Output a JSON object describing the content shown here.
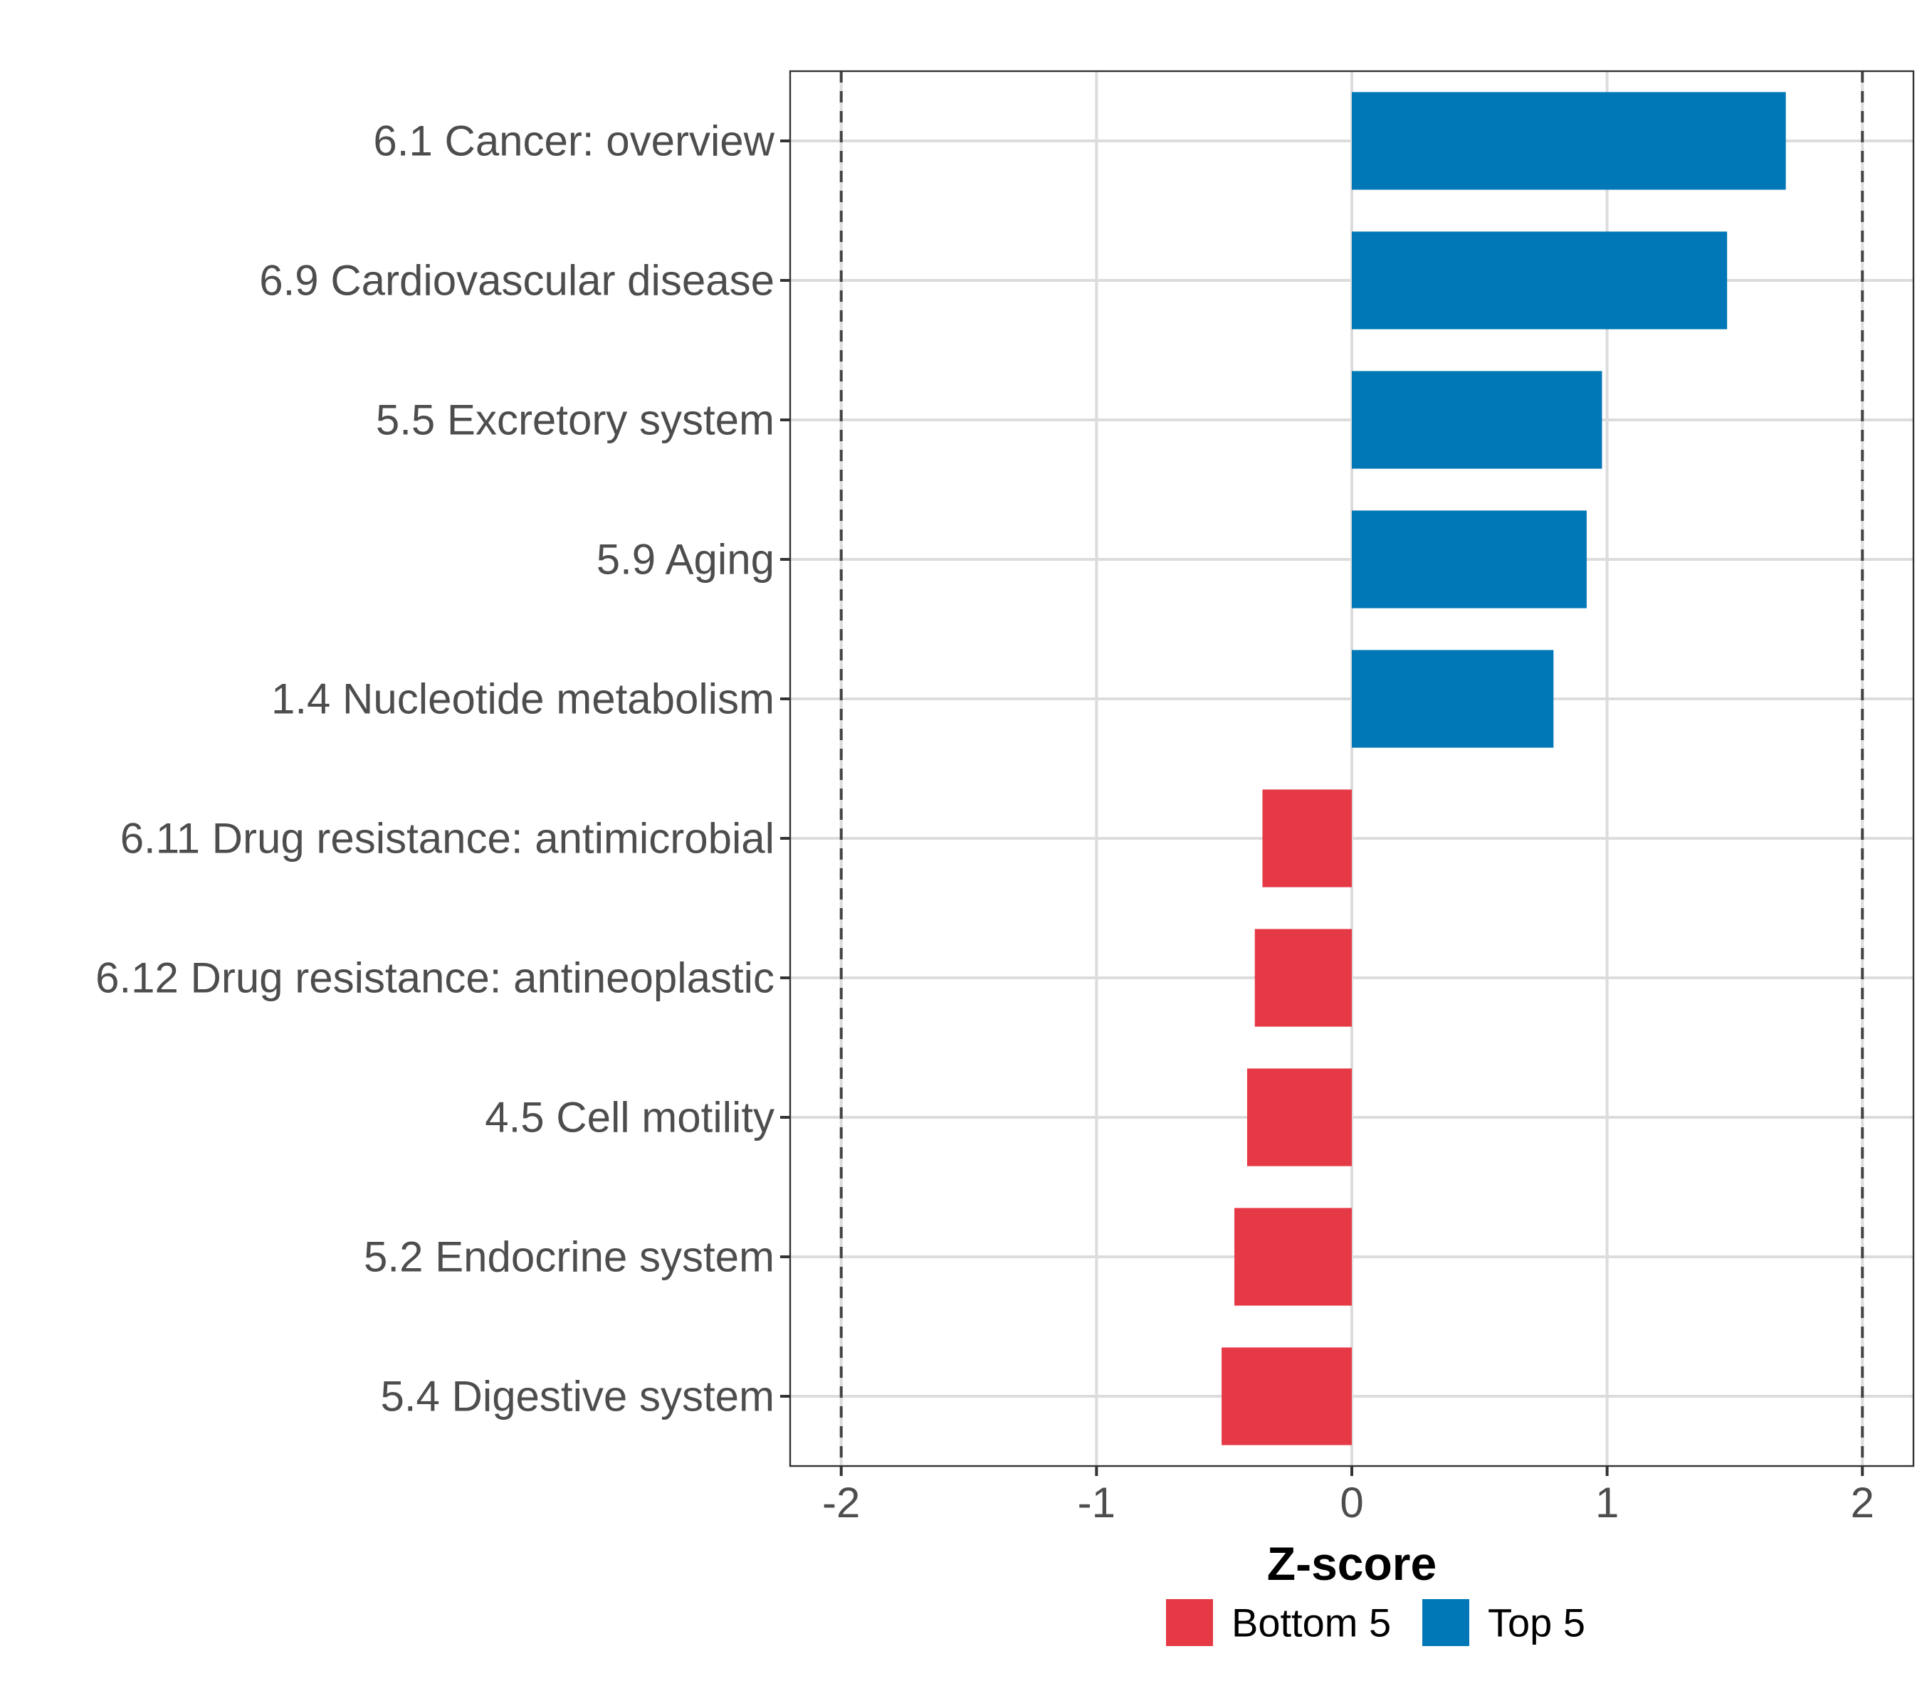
{
  "chart_data": {
    "type": "bar",
    "orientation": "horizontal",
    "categories": [
      "6.1 Cancer: overview",
      "6.9 Cardiovascular disease",
      "5.5 Excretory system",
      "5.9 Aging",
      "1.4 Nucleotide metabolism",
      "6.11 Drug resistance: antimicrobial",
      "6.12 Drug resistance: antineoplastic",
      "4.5 Cell motility",
      "5.2 Endocrine system",
      "5.4 Digestive system"
    ],
    "values": [
      1.7,
      1.47,
      0.98,
      0.92,
      0.79,
      -0.35,
      -0.38,
      -0.41,
      -0.46,
      -0.51
    ],
    "groups": [
      "Top 5",
      "Top 5",
      "Top 5",
      "Top 5",
      "Top 5",
      "Bottom 5",
      "Bottom 5",
      "Bottom 5",
      "Bottom 5",
      "Bottom 5"
    ],
    "xlim": [
      -2.2,
      2.2
    ],
    "xticks": [
      -2,
      -1,
      0,
      1,
      2
    ],
    "xtick_labels": [
      "-2",
      "-1",
      "0",
      "1",
      "2"
    ],
    "reference_lines": [
      -2,
      2
    ],
    "xlabel": "Z-score",
    "ylabel": "",
    "grid": true,
    "legend": {
      "position": "bottom",
      "entries": [
        {
          "label": "Bottom 5",
          "color": "#E63946"
        },
        {
          "label": "Top 5",
          "color": "#0077B6"
        }
      ]
    }
  }
}
